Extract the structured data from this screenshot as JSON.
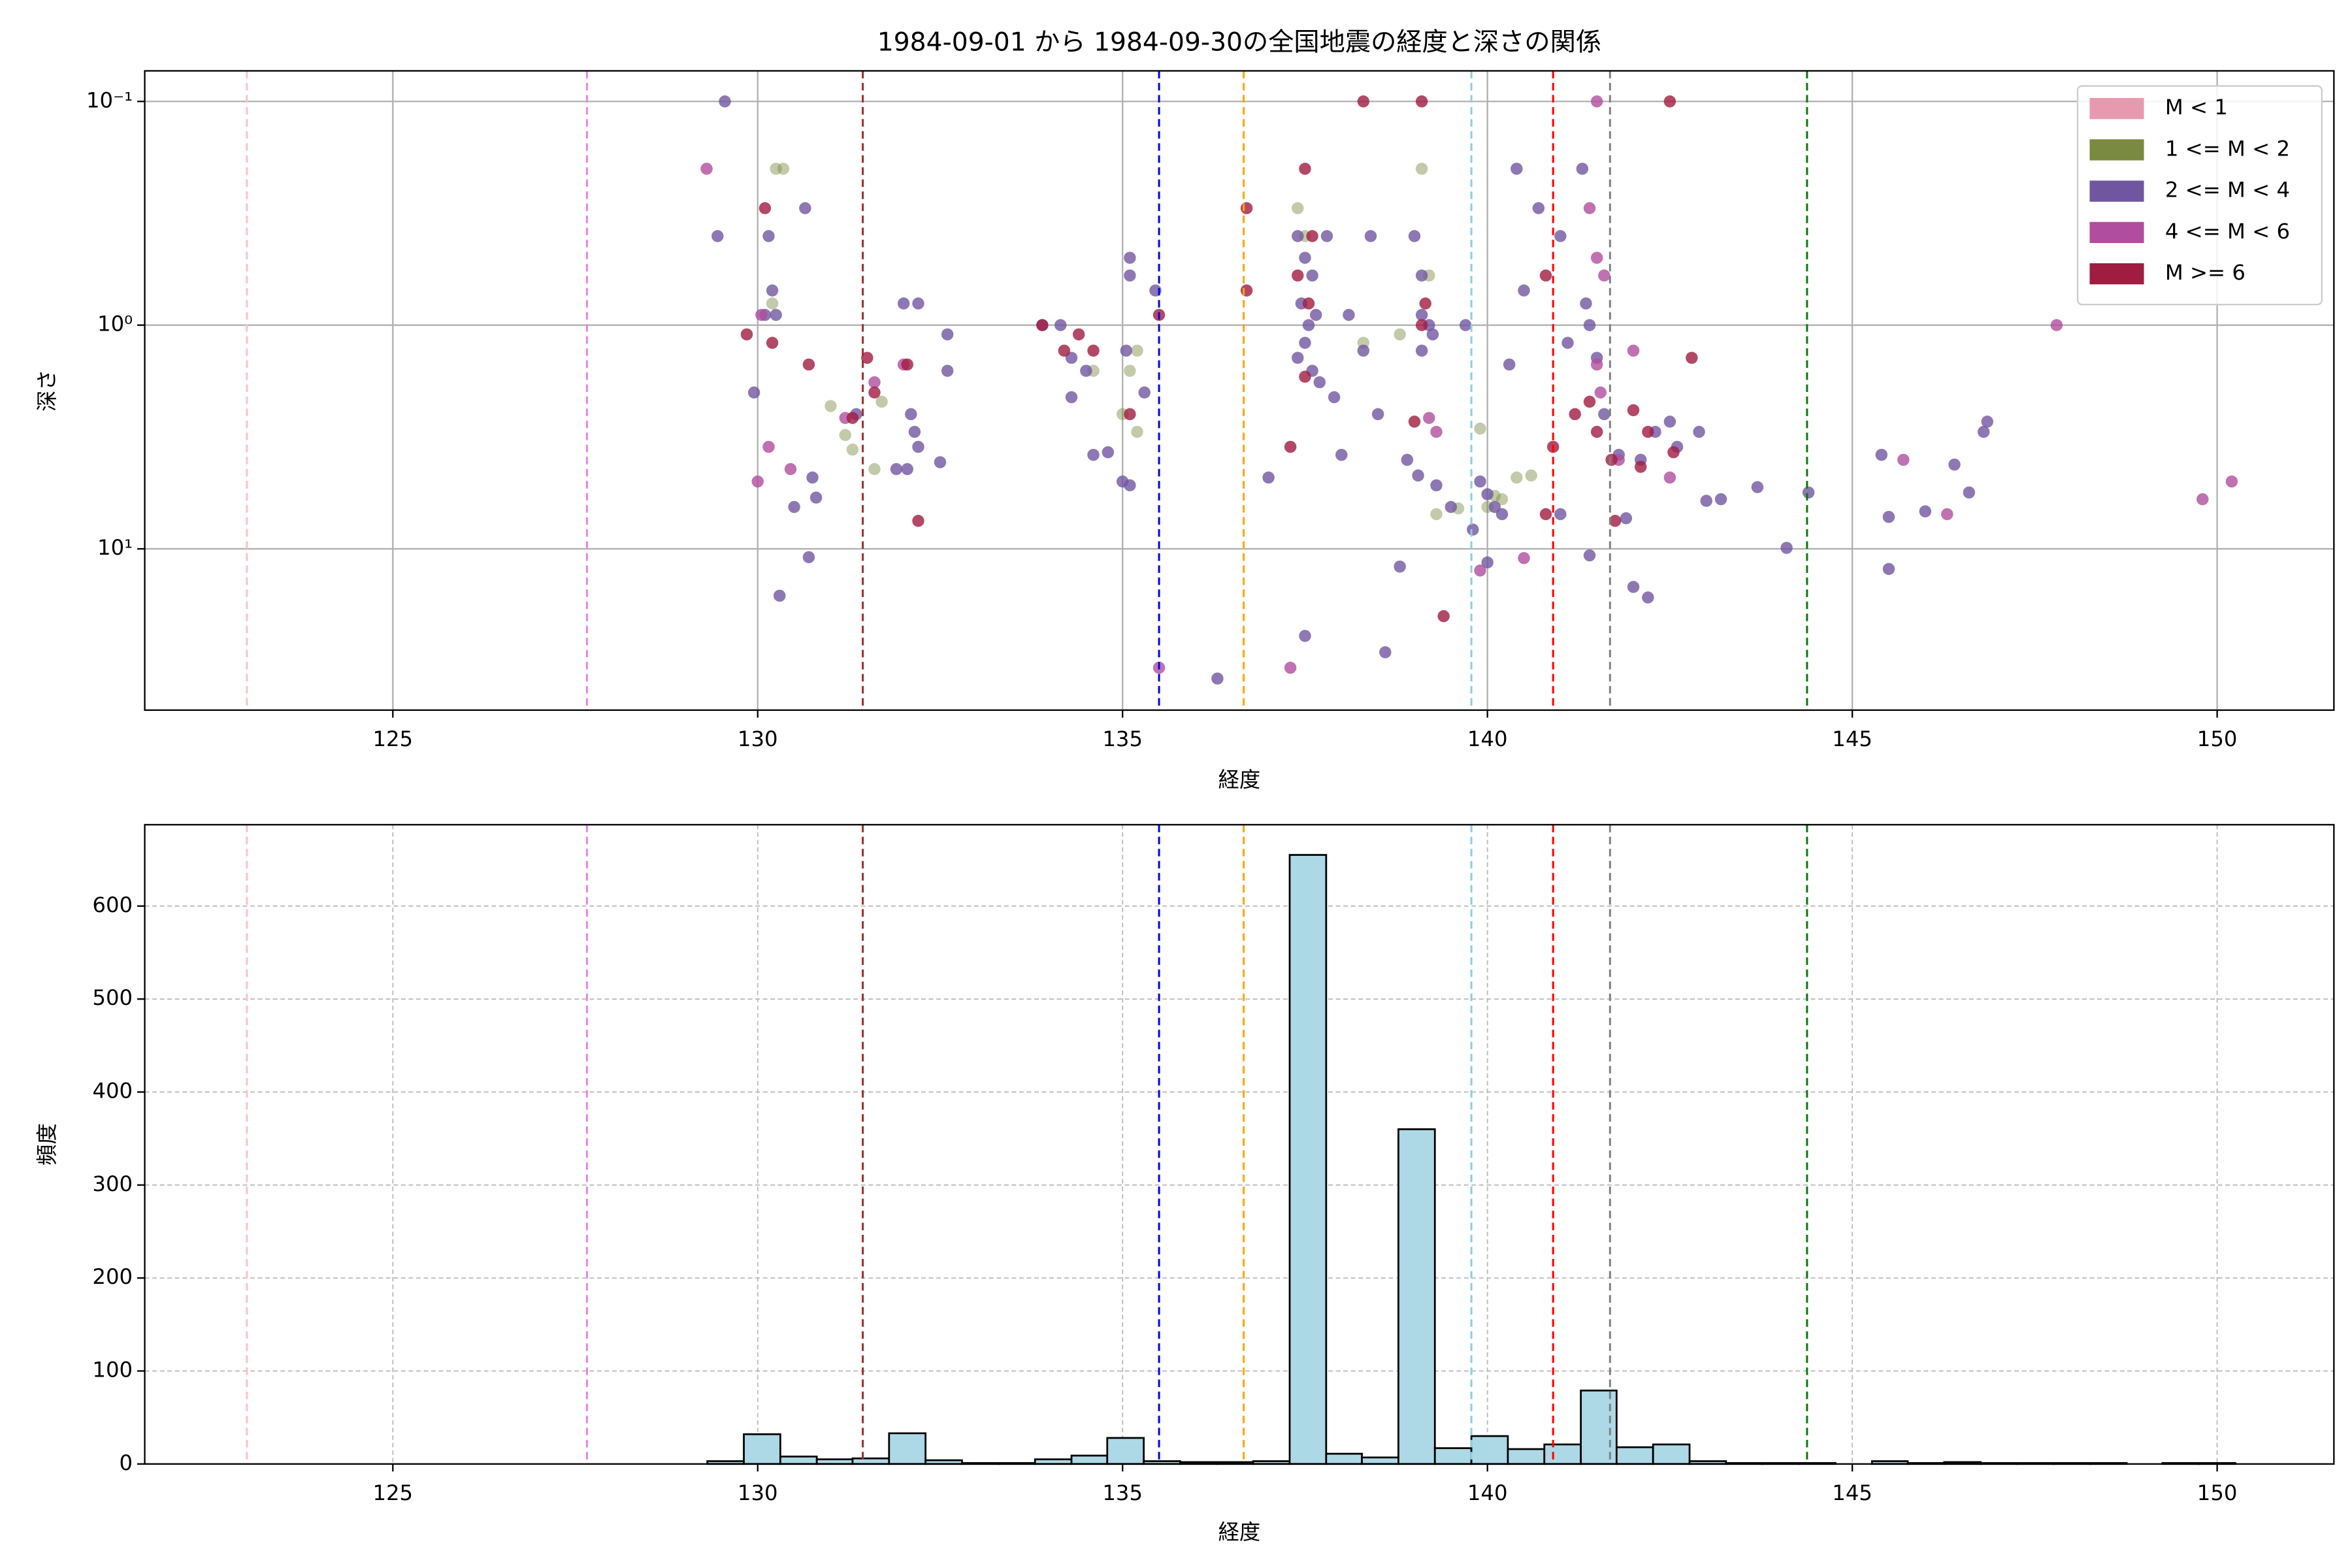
{
  "chart_data": [
    {
      "type": "scatter",
      "title": "1984-09-01 から 1984-09-30の全国地震の経度と深さの関係",
      "xlabel": "経度",
      "ylabel": "深さ",
      "xlim": [
        121.6,
        151.6
      ],
      "xticks": [
        125,
        130,
        135,
        140,
        145,
        150
      ],
      "yscale": "log",
      "ylim": [
        52.6,
        0.073
      ],
      "yticks": [
        {
          "value": 0.1,
          "label": "10⁻¹"
        },
        {
          "value": 1,
          "label": "10⁰"
        },
        {
          "value": 10,
          "label": "10¹"
        }
      ],
      "grid": true,
      "legend": "upper right",
      "vlines": [
        {
          "x": 123.0,
          "color": "pink"
        },
        {
          "x": 127.66,
          "color": "violet"
        },
        {
          "x": 131.44,
          "color": "brown"
        },
        {
          "x": 135.5,
          "color": "blue"
        },
        {
          "x": 136.66,
          "color": "orange"
        },
        {
          "x": 139.78,
          "color": "skyblue"
        },
        {
          "x": 140.9,
          "color": "red"
        },
        {
          "x": 141.68,
          "color": "gray"
        },
        {
          "x": 144.38,
          "color": "green"
        }
      ],
      "series": [
        {
          "name": "M < 1",
          "color": "#e899b0",
          "x": [],
          "values": []
        },
        {
          "name": "1 <= M < 2",
          "color": "#7a8a40",
          "x": [
            130.25,
            130.35,
            130.2,
            131.0,
            131.2,
            131.3,
            131.6,
            131.7,
            134.6,
            135.1,
            135.2,
            135.0,
            135.2,
            137.4,
            137.5,
            138.3,
            138.8,
            139.1,
            139.2,
            139.9,
            140.0,
            140.1,
            140.2,
            140.4,
            140.6,
            139.3,
            139.6
          ],
          "values": [
            0.2,
            0.2,
            0.8,
            2.3,
            3.1,
            3.6,
            4.4,
            2.2,
            1.6,
            1.6,
            1.3,
            2.5,
            3.0,
            0.3,
            0.4,
            1.2,
            1.1,
            0.2,
            0.6,
            2.9,
            6.5,
            5.8,
            6.0,
            4.8,
            4.7,
            7.0,
            6.6
          ]
        },
        {
          "name": "2 <= M < 4",
          "color": "#7056a0",
          "x": [
            129.55,
            129.45,
            130.15,
            130.2,
            130.1,
            130.25,
            129.95,
            130.3,
            130.5,
            130.65,
            130.75,
            130.8,
            130.7,
            131.35,
            132.0,
            132.2,
            132.1,
            132.15,
            132.2,
            132.05,
            131.9,
            132.5,
            132.6,
            132.6,
            133.9,
            134.15,
            134.3,
            134.5,
            134.3,
            134.6,
            134.8,
            135.1,
            135.1,
            135.05,
            135.3,
            135.45,
            135.0,
            135.1,
            136.3,
            137.0,
            137.4,
            137.5,
            137.6,
            137.45,
            137.55,
            137.5,
            137.65,
            137.4,
            137.6,
            137.7,
            137.8,
            137.5,
            137.9,
            138.0,
            138.1,
            138.4,
            138.3,
            138.5,
            138.6,
            138.8,
            138.9,
            139.0,
            139.1,
            139.1,
            139.2,
            139.1,
            139.25,
            139.05,
            139.3,
            139.7,
            139.5,
            139.9,
            140.0,
            140.1,
            140.2,
            139.8,
            140.0,
            140.3,
            140.4,
            140.5,
            140.7,
            141.0,
            141.1,
            141.3,
            141.35,
            141.4,
            141.5,
            141.6,
            141.8,
            141.9,
            142.1,
            142.3,
            142.5,
            142.6,
            142.9,
            143.2,
            143.7,
            144.1,
            144.4,
            145.4,
            145.5,
            145.5,
            146.0,
            146.4,
            146.6,
            146.8,
            146.85,
            142.0,
            142.2,
            141.4,
            141.0,
            143.0
          ],
          "values": [
            0.1,
            0.4,
            0.4,
            0.7,
            0.9,
            0.9,
            2.0,
            16.2,
            6.5,
            0.3,
            4.8,
            5.9,
            10.9,
            2.5,
            0.8,
            0.8,
            2.5,
            3.0,
            3.5,
            4.4,
            4.4,
            4.1,
            1.6,
            1.1,
            1.0,
            1.0,
            1.4,
            1.6,
            2.1,
            3.8,
            3.7,
            0.5,
            0.6,
            1.3,
            2.0,
            0.7,
            5.0,
            5.2,
            38,
            4.8,
            0.4,
            0.5,
            0.6,
            0.8,
            1.0,
            1.2,
            0.9,
            1.4,
            1.6,
            1.8,
            0.4,
            24.5,
            2.1,
            3.8,
            0.9,
            0.4,
            1.3,
            2.5,
            29,
            12.0,
            4.0,
            0.4,
            0.6,
            0.9,
            1.0,
            1.3,
            1.1,
            4.7,
            5.2,
            1.0,
            6.5,
            5.0,
            5.7,
            6.5,
            7.0,
            8.2,
            11.5,
            1.5,
            0.2,
            0.7,
            0.3,
            0.4,
            1.2,
            0.2,
            0.8,
            1.0,
            1.4,
            2.5,
            3.8,
            7.3,
            4.0,
            3.0,
            2.7,
            3.5,
            3.0,
            6.0,
            5.3,
            9.9,
            5.6,
            3.8,
            12.3,
            7.2,
            6.8,
            4.2,
            5.6,
            3.0,
            2.7,
            14.8,
            16.5,
            10.7,
            7.0,
            6.1
          ]
        },
        {
          "name": "4 <= M < 6",
          "color": "#b04d9e",
          "x": [
            129.3,
            130.15,
            130.0,
            130.45,
            130.05,
            131.2,
            131.6,
            132.0,
            135.5,
            137.3,
            139.2,
            139.3,
            139.9,
            140.5,
            141.5,
            141.4,
            141.5,
            141.6,
            141.55,
            141.5,
            142.0,
            142.5,
            145.7,
            146.3,
            147.8,
            149.8,
            150.2,
            141.8
          ],
          "values": [
            0.2,
            3.5,
            5.0,
            4.4,
            0.9,
            2.6,
            1.8,
            1.5,
            34,
            34,
            2.6,
            3.0,
            12.5,
            11.0,
            0.1,
            0.3,
            0.5,
            0.6,
            2.0,
            1.5,
            1.3,
            4.8,
            4.0,
            7.0,
            1.0,
            6.0,
            5.0,
            4.0
          ]
        },
        {
          "name": "M >= 6",
          "color": "#a01c40",
          "x": [
            129.85,
            130.1,
            130.2,
            130.7,
            131.5,
            131.6,
            132.05,
            132.2,
            131.3,
            133.9,
            134.2,
            134.4,
            134.6,
            135.1,
            135.5,
            136.7,
            136.7,
            137.5,
            137.6,
            137.4,
            137.55,
            137.5,
            137.3,
            138.3,
            139.1,
            139.15,
            139.1,
            139.0,
            139.4,
            140.8,
            140.8,
            140.9,
            141.2,
            141.5,
            141.7,
            141.75,
            142.0,
            142.1,
            142.2,
            142.5,
            142.8,
            142.55,
            141.4
          ],
          "values": [
            1.1,
            0.3,
            1.2,
            1.5,
            1.4,
            2.0,
            1.5,
            7.5,
            2.6,
            1.0,
            1.3,
            1.1,
            1.3,
            2.5,
            0.9,
            0.3,
            0.7,
            0.2,
            0.4,
            0.6,
            0.8,
            1.7,
            3.5,
            0.1,
            0.1,
            0.8,
            1.0,
            2.7,
            20,
            0.6,
            7.0,
            3.5,
            2.5,
            3.0,
            4.0,
            7.5,
            2.4,
            4.3,
            3.0,
            0.1,
            1.4,
            3.7,
            2.2
          ]
        }
      ]
    },
    {
      "type": "histogram",
      "xlabel": "経度",
      "ylabel": "頻度",
      "xlim": [
        121.6,
        151.6
      ],
      "xticks": [
        125,
        130,
        135,
        140,
        145,
        150
      ],
      "ylim": [
        0,
        687.5
      ],
      "yticks": [
        0,
        100,
        200,
        300,
        400,
        500,
        600
      ],
      "grid": true,
      "color": "#add8e6",
      "edgecolor": "#000000",
      "vlines": [
        {
          "x": 123.0,
          "color": "pink"
        },
        {
          "x": 127.66,
          "color": "violet"
        },
        {
          "x": 131.44,
          "color": "brown"
        },
        {
          "x": 135.5,
          "color": "blue"
        },
        {
          "x": 136.66,
          "color": "orange"
        },
        {
          "x": 139.78,
          "color": "skyblue"
        },
        {
          "x": 140.9,
          "color": "red"
        },
        {
          "x": 141.68,
          "color": "gray"
        },
        {
          "x": 144.38,
          "color": "green"
        }
      ],
      "bins": [
        129.31,
        129.81,
        130.31,
        130.81,
        131.3,
        131.8,
        132.3,
        132.8,
        133.3,
        133.8,
        134.3,
        134.79,
        135.29,
        135.79,
        136.29,
        136.79,
        137.29,
        137.79,
        138.28,
        138.78,
        139.28,
        139.78,
        140.28,
        140.78,
        141.28,
        141.77,
        142.27,
        142.77,
        143.27,
        143.77,
        144.27,
        144.77,
        145.27,
        145.76,
        146.26,
        146.76,
        147.26,
        147.76,
        148.26,
        148.76,
        149.25,
        149.75,
        150.25
      ],
      "values": [
        3,
        32,
        8,
        5,
        6,
        33,
        4,
        1,
        1,
        5,
        9,
        28,
        3,
        2,
        2,
        3,
        655,
        11,
        7,
        360,
        17,
        30,
        16,
        21,
        79,
        18,
        21,
        3,
        1,
        1,
        1,
        0,
        3,
        1,
        2,
        1,
        1,
        1,
        1,
        0,
        1,
        1
      ]
    }
  ]
}
